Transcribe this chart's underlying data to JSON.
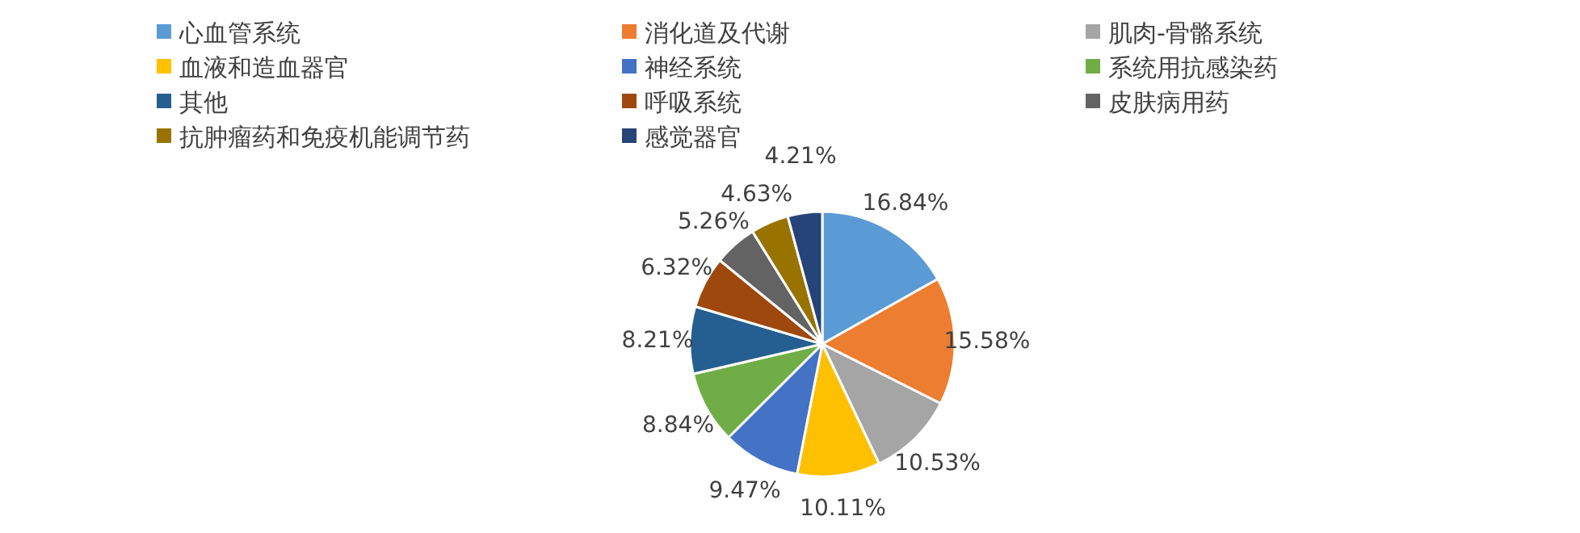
{
  "chart_data": {
    "type": "pie",
    "legend": "top",
    "categories": [
      "心血管系统",
      "消化道及代谢",
      "肌肉-骨骼系统",
      "血液和造血器官",
      "神经系统",
      "系统用抗感染药",
      "其他",
      "呼吸系统",
      "皮肤病用药",
      "抗肿瘤药和免疫机能调节药",
      "感觉器官"
    ],
    "values": [
      16.84,
      15.58,
      10.53,
      10.11,
      9.47,
      8.84,
      8.21,
      6.32,
      5.26,
      4.63,
      4.21
    ],
    "value_labels": [
      "16.84%",
      "15.58%",
      "10.53%",
      "10.11%",
      "9.47%",
      "8.84%",
      "8.21%",
      "6.32%",
      "5.26%",
      "4.63%",
      "4.21%"
    ],
    "colors": [
      "#5b9bd5",
      "#ed7d31",
      "#a5a5a5",
      "#ffc000",
      "#4472c4",
      "#70ad47",
      "#255e91",
      "#9e480e",
      "#636363",
      "#997300",
      "#264478"
    ]
  }
}
